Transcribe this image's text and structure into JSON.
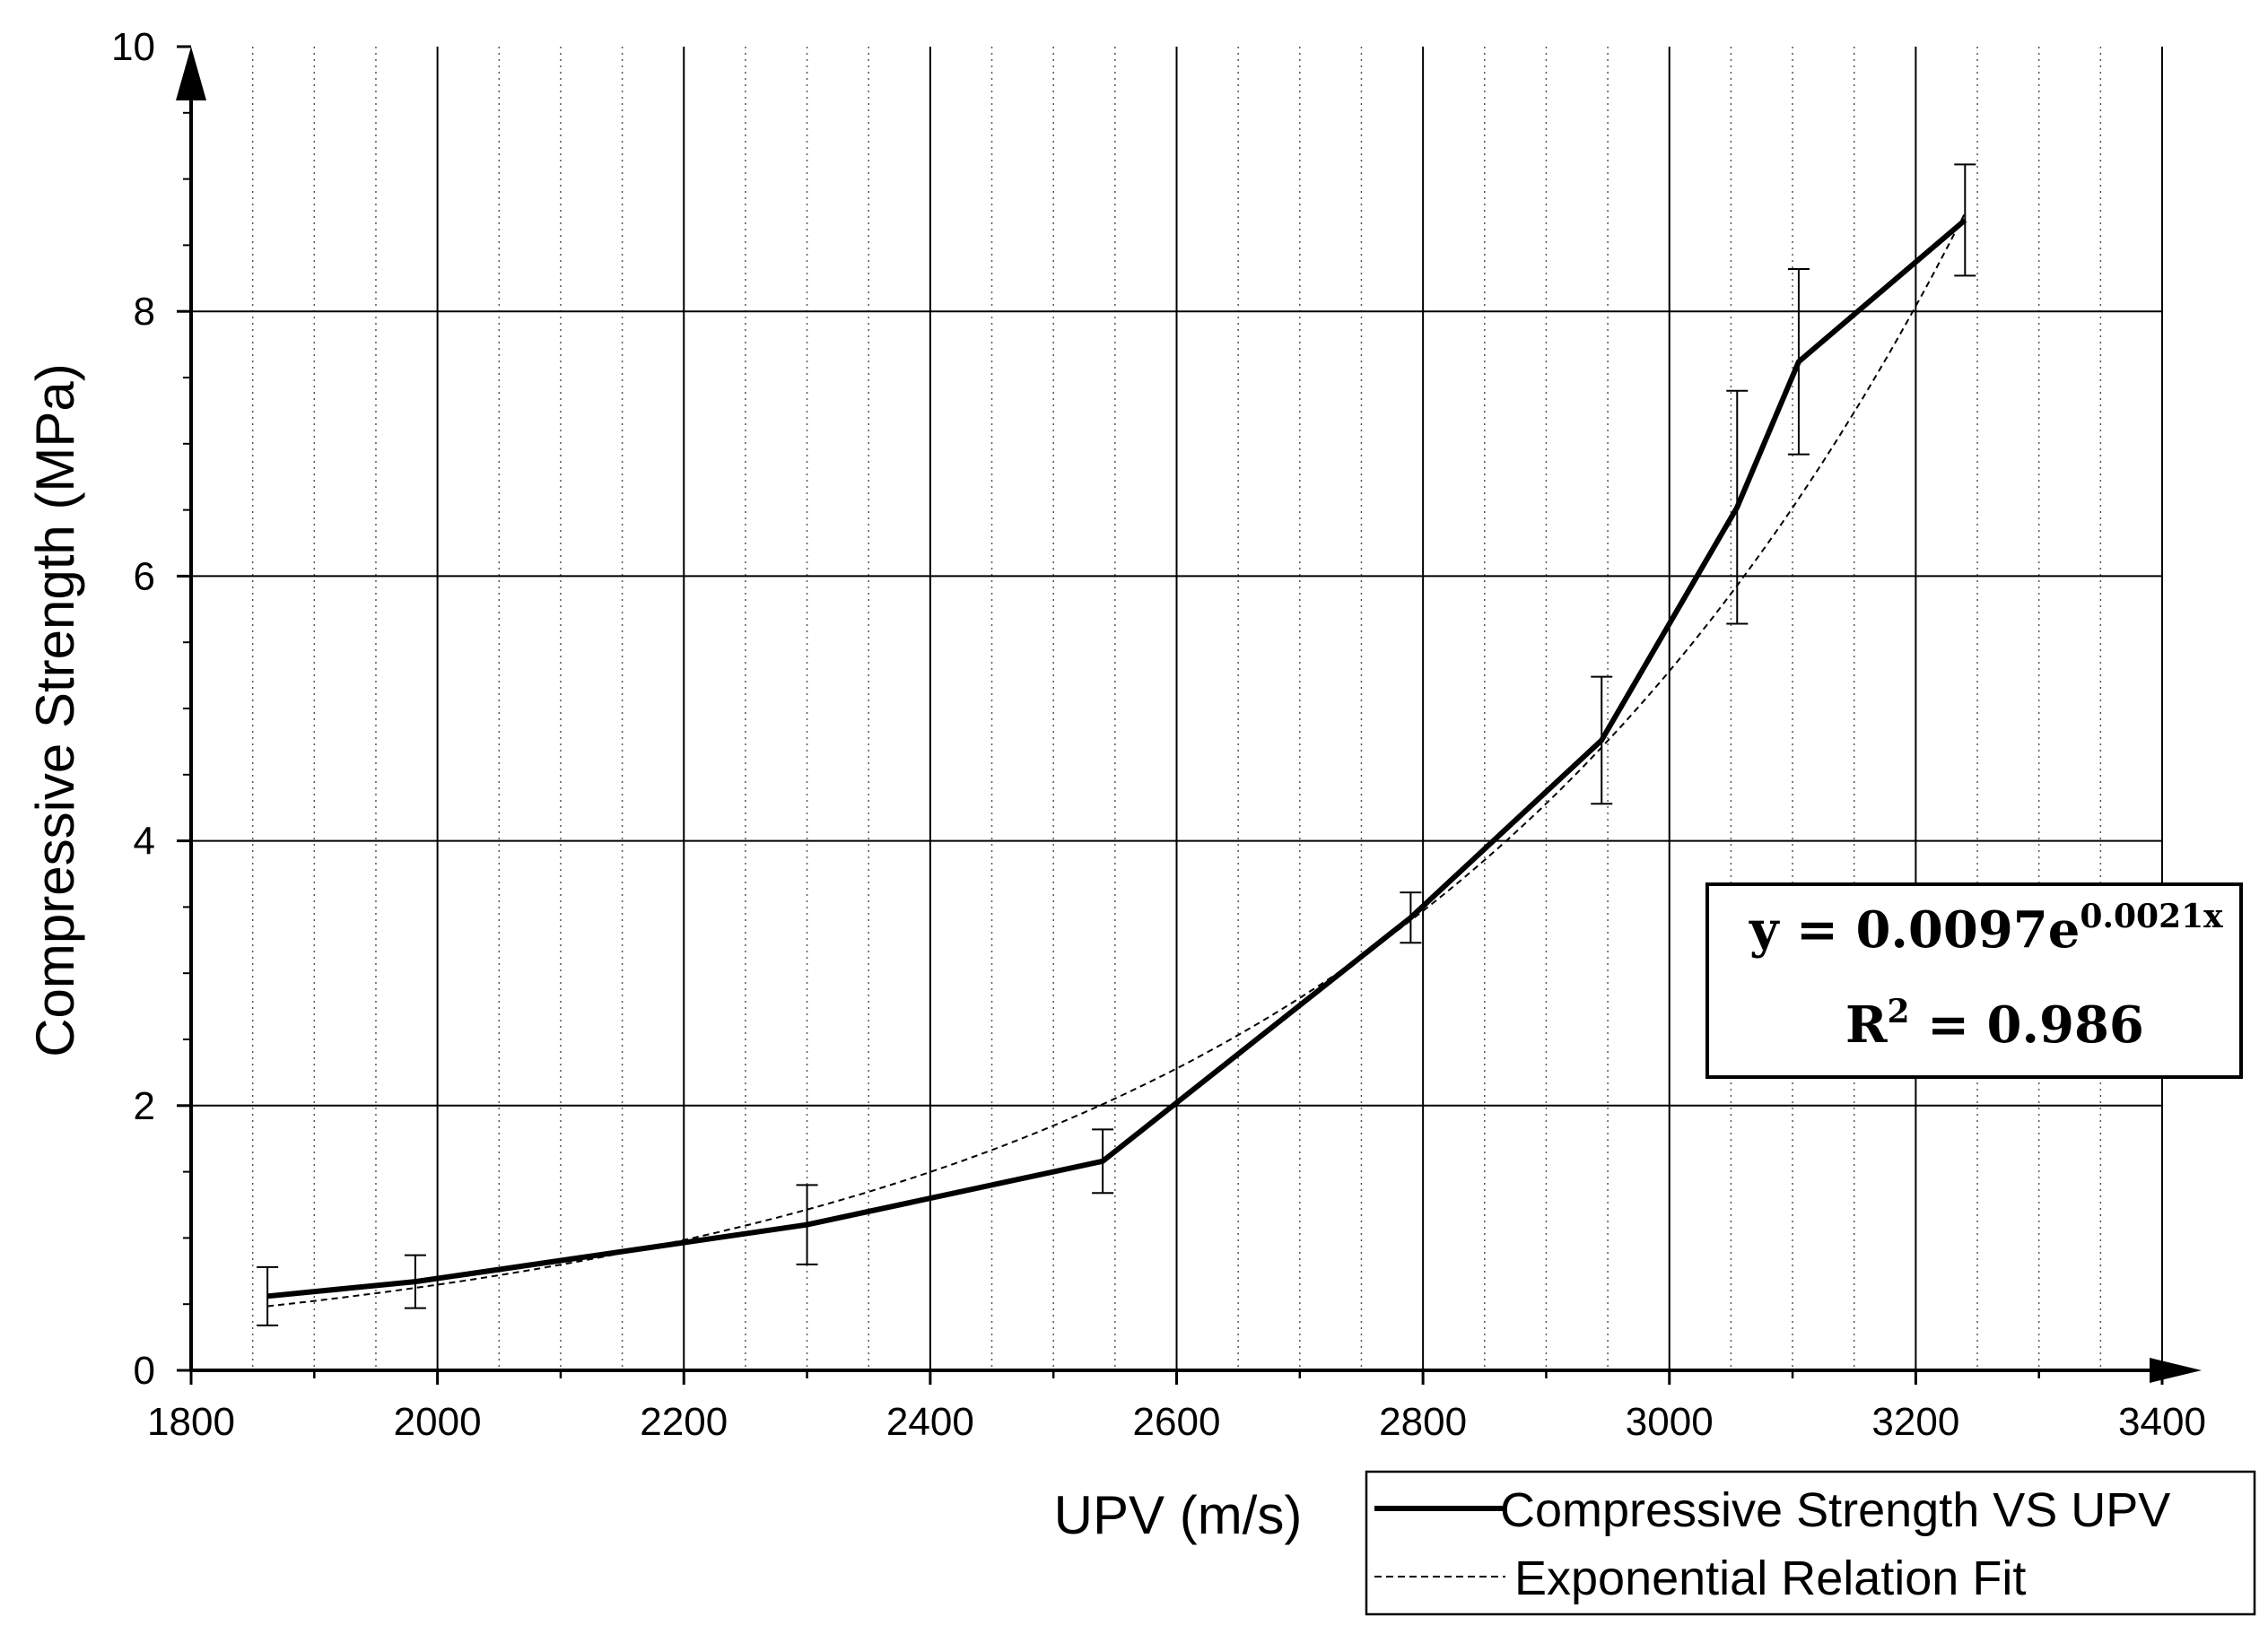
{
  "chart_data": {
    "type": "line",
    "xlabel": "UPV (m/s)",
    "ylabel": "Compressive Strength (MPa)",
    "xlim": [
      1800,
      3400
    ],
    "ylim": [
      0,
      10
    ],
    "x_ticks": [
      "1800",
      "2000",
      "2200",
      "2400",
      "2600",
      "2800",
      "3000",
      "3200",
      "3400"
    ],
    "y_ticks": [
      "0",
      "2",
      "4",
      "6",
      "8",
      "10"
    ],
    "grid": true,
    "legend_position": "bottom-right, below plot",
    "series": [
      {
        "name": "Compressive Strength VS UPV",
        "style": "solid-thick",
        "color": "#000000",
        "x": [
          1862,
          1982,
          2300,
          2540,
          2790,
          2945,
          3055,
          3105,
          3240
        ],
        "y": [
          0.56,
          0.67,
          1.1,
          1.58,
          3.42,
          4.76,
          6.52,
          7.62,
          8.69
        ],
        "error": [
          0.22,
          0.2,
          0.3,
          0.24,
          0.19,
          0.48,
          0.88,
          0.7,
          0.42
        ]
      },
      {
        "name": "Exponential Relation Fit",
        "style": "dashed-thin",
        "color": "#000000",
        "equation": {
          "a": 0.0097,
          "b": 0.0021
        },
        "x_range": [
          1862,
          3240
        ]
      }
    ],
    "annotation": {
      "equation_main": "y = 0.0097e",
      "equation_exp": "0.0021x",
      "r2_label": "R",
      "r2_sup": "2",
      "r2_value": " = 0.986"
    }
  }
}
